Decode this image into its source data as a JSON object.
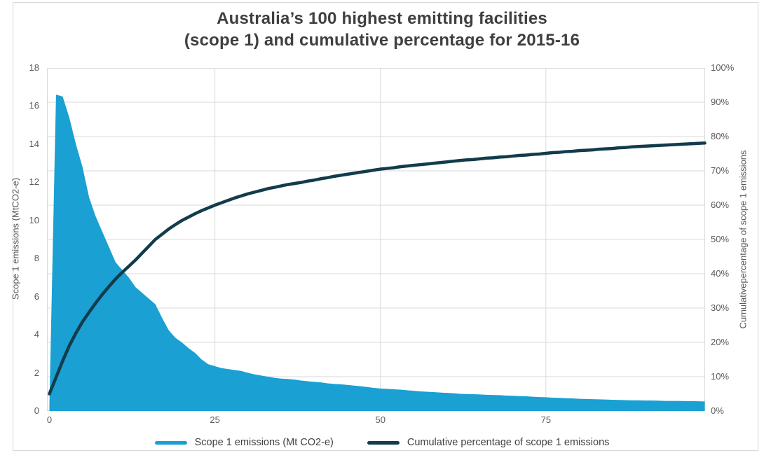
{
  "title": {
    "line1": "Australia’s 100 highest emitting facilities",
    "line2": "(scope 1) and cumulative percentage for 2015-16"
  },
  "colors": {
    "area": "#1AA0D3",
    "line": "#123C4B",
    "grid": "#D9D9D9",
    "plot_border": "#D9D9D9",
    "axis_text": "#595959",
    "title_text": "#3F3F3F",
    "legend_text": "#404040",
    "background": "#FFFFFF"
  },
  "chart_data": {
    "type": "combo (area + line)",
    "title": "Australia’s 100 highest emitting facilities (scope 1) and cumulative percentage for 2015-16",
    "x_range": [
      0,
      99
    ],
    "x_ticks": [
      0,
      25,
      50,
      75
    ],
    "grid": true,
    "legend_position": "bottom",
    "left_axis": {
      "label": "Scope 1 emissions (MtCO2-e)",
      "range": [
        0,
        18
      ],
      "ticks": [
        0,
        2,
        4,
        6,
        8,
        10,
        12,
        14,
        16,
        18
      ]
    },
    "right_axis": {
      "label": "Cumulativepercentage of scope 1 emissions",
      "range": [
        0,
        100
      ],
      "ticks": [
        0,
        10,
        20,
        30,
        40,
        50,
        60,
        70,
        80,
        90,
        100
      ],
      "tick_suffix": "%"
    },
    "series": [
      {
        "name": "Scope 1 emissions (Mt CO2-e)",
        "type": "area",
        "axis": "left",
        "color": "#1AA0D3",
        "values": [
          0.3,
          16.6,
          16.5,
          15.4,
          14.0,
          12.8,
          11.2,
          10.2,
          9.4,
          8.6,
          7.8,
          7.4,
          7.0,
          6.5,
          6.2,
          5.9,
          5.6,
          4.9,
          4.25,
          3.85,
          3.6,
          3.3,
          3.05,
          2.7,
          2.45,
          2.35,
          2.25,
          2.2,
          2.15,
          2.1,
          2.0,
          1.92,
          1.86,
          1.8,
          1.74,
          1.7,
          1.68,
          1.65,
          1.6,
          1.56,
          1.53,
          1.5,
          1.45,
          1.42,
          1.4,
          1.37,
          1.33,
          1.3,
          1.26,
          1.21,
          1.18,
          1.16,
          1.14,
          1.12,
          1.09,
          1.06,
          1.03,
          1.01,
          0.99,
          0.97,
          0.95,
          0.93,
          0.9,
          0.89,
          0.88,
          0.87,
          0.85,
          0.84,
          0.83,
          0.81,
          0.8,
          0.78,
          0.77,
          0.75,
          0.73,
          0.72,
          0.7,
          0.69,
          0.67,
          0.66,
          0.64,
          0.63,
          0.62,
          0.61,
          0.6,
          0.59,
          0.58,
          0.57,
          0.56,
          0.56,
          0.55,
          0.55,
          0.54,
          0.53,
          0.53,
          0.53,
          0.52,
          0.52,
          0.51,
          0.5
        ]
      },
      {
        "name": "Cumulative percentage of scope 1 emissions",
        "type": "line",
        "axis": "right",
        "color": "#123C4B",
        "values": [
          5.0,
          9.8,
          14.6,
          19.0,
          22.7,
          26.0,
          28.8,
          31.5,
          34.0,
          36.3,
          38.5,
          40.4,
          42.2,
          44.0,
          46.0,
          48.0,
          50.0,
          51.5,
          53.0,
          54.3,
          55.5,
          56.5,
          57.5,
          58.4,
          59.2,
          60.0,
          60.7,
          61.4,
          62.1,
          62.7,
          63.3,
          63.8,
          64.3,
          64.8,
          65.2,
          65.6,
          66.0,
          66.3,
          66.6,
          67.0,
          67.3,
          67.7,
          68.0,
          68.4,
          68.7,
          69.0,
          69.3,
          69.6,
          69.9,
          70.2,
          70.5,
          70.7,
          70.9,
          71.2,
          71.4,
          71.6,
          71.8,
          72.0,
          72.2,
          72.4,
          72.6,
          72.8,
          73.0,
          73.2,
          73.3,
          73.5,
          73.7,
          73.8,
          74.0,
          74.1,
          74.3,
          74.5,
          74.6,
          74.8,
          74.9,
          75.1,
          75.3,
          75.4,
          75.6,
          75.7,
          75.9,
          76.0,
          76.1,
          76.3,
          76.4,
          76.5,
          76.7,
          76.8,
          77.0,
          77.1,
          77.2,
          77.3,
          77.4,
          77.5,
          77.6,
          77.7,
          77.8,
          77.9,
          78.0,
          78.1
        ]
      }
    ]
  }
}
